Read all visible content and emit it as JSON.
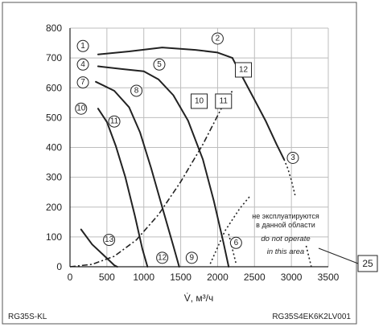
{
  "chart_data": {
    "type": "line",
    "xlabel": "V̇, м³/ч",
    "ylabel": "",
    "x_ticks": [
      0,
      500,
      1000,
      1500,
      2000,
      2500,
      3000,
      3500
    ],
    "y_ticks": [
      0,
      100,
      200,
      300,
      400,
      500,
      600,
      700,
      800
    ],
    "xlim": [
      0,
      3500
    ],
    "ylim": [
      0,
      800
    ],
    "grid": true,
    "footer_left": "RG35S-KL",
    "footer_right": "RG35S4EK6K2LV001",
    "note_ru_line1": "не эксплуатируются",
    "note_ru_line2": "в данной области",
    "note_en_line1": "do not operate",
    "note_en_line2": "in this area",
    "callout": "25",
    "series": [
      {
        "id": "c1",
        "style": "solid",
        "points": [
          [
            380,
            712
          ],
          [
            800,
            722
          ],
          [
            1250,
            735
          ],
          [
            1700,
            727
          ],
          [
            2000,
            718
          ],
          [
            2200,
            700
          ]
        ]
      },
      {
        "id": "c4",
        "style": "solid",
        "points": [
          [
            380,
            672
          ],
          [
            700,
            663
          ],
          [
            1000,
            655
          ],
          [
            1200,
            628
          ],
          [
            1400,
            575
          ],
          [
            1600,
            490
          ],
          [
            1800,
            360
          ],
          [
            1950,
            220
          ],
          [
            2080,
            80
          ],
          [
            2150,
            0
          ]
        ]
      },
      {
        "id": "c7",
        "style": "solid",
        "points": [
          [
            350,
            620
          ],
          [
            600,
            590
          ],
          [
            800,
            535
          ],
          [
            950,
            450
          ],
          [
            1100,
            330
          ],
          [
            1250,
            200
          ],
          [
            1400,
            70
          ],
          [
            1480,
            0
          ]
        ]
      },
      {
        "id": "c10",
        "style": "solid",
        "points": [
          [
            380,
            530
          ],
          [
            500,
            485
          ],
          [
            620,
            405
          ],
          [
            750,
            300
          ],
          [
            880,
            170
          ],
          [
            980,
            60
          ],
          [
            1050,
            0
          ]
        ]
      },
      {
        "id": "c13",
        "style": "solid",
        "points": [
          [
            150,
            125
          ],
          [
            300,
            75
          ],
          [
            450,
            40
          ],
          [
            600,
            5
          ],
          [
            640,
            0
          ]
        ]
      },
      {
        "id": "c3",
        "style": "solid",
        "points": [
          [
            2200,
            700
          ],
          [
            2350,
            630
          ],
          [
            2500,
            560
          ],
          [
            2650,
            490
          ],
          [
            2800,
            410
          ],
          [
            2900,
            360
          ]
        ]
      },
      {
        "id": "dashdot",
        "style": "dashdot",
        "points": [
          [
            0,
            0
          ],
          [
            300,
            8
          ],
          [
            600,
            35
          ],
          [
            900,
            90
          ],
          [
            1200,
            175
          ],
          [
            1500,
            285
          ],
          [
            1800,
            410
          ],
          [
            2050,
            530
          ],
          [
            2200,
            590
          ]
        ]
      },
      {
        "id": "dotted1",
        "style": "dotted",
        "points": [
          [
            2900,
            360
          ],
          [
            2950,
            330
          ],
          [
            3000,
            290
          ],
          [
            3050,
            240
          ]
        ]
      },
      {
        "id": "dotted2",
        "style": "dotted",
        "points": [
          [
            1900,
            10
          ],
          [
            2100,
            120
          ],
          [
            2300,
            195
          ],
          [
            2450,
            240
          ]
        ]
      },
      {
        "id": "dotted3",
        "style": "dotted",
        "points": [
          [
            2150,
            110
          ],
          [
            2200,
            60
          ],
          [
            2250,
            10
          ]
        ]
      },
      {
        "id": "dotted4",
        "style": "dotted",
        "points": [
          [
            3200,
            70
          ],
          [
            3250,
            20
          ],
          [
            3270,
            0
          ]
        ]
      }
    ],
    "markers": [
      {
        "label": "1",
        "shape": "circle",
        "x": 175,
        "y": 740
      },
      {
        "label": "2",
        "shape": "circle",
        "x": 2000,
        "y": 765
      },
      {
        "label": "4",
        "shape": "circle",
        "x": 175,
        "y": 678
      },
      {
        "label": "5",
        "shape": "circle",
        "x": 1210,
        "y": 678
      },
      {
        "label": "7",
        "shape": "circle",
        "x": 175,
        "y": 618
      },
      {
        "label": "8",
        "shape": "circle",
        "x": 900,
        "y": 590
      },
      {
        "label": "10",
        "shape": "circle",
        "x": 150,
        "y": 530
      },
      {
        "label": "11",
        "shape": "circle",
        "x": 600,
        "y": 487
      },
      {
        "label": "3",
        "shape": "circle",
        "x": 3020,
        "y": 365
      },
      {
        "label": "13",
        "shape": "circle",
        "x": 530,
        "y": 90
      },
      {
        "label": "12",
        "shape": "circle",
        "x": 1250,
        "y": 30
      },
      {
        "label": "9",
        "shape": "circle",
        "x": 1650,
        "y": 30
      },
      {
        "label": "6",
        "shape": "circle",
        "x": 2250,
        "y": 80
      },
      {
        "label": "12",
        "shape": "box",
        "x": 2350,
        "y": 660
      },
      {
        "label": "10",
        "shape": "box",
        "x": 1750,
        "y": 555
      },
      {
        "label": "11",
        "shape": "box",
        "x": 2080,
        "y": 555
      }
    ]
  }
}
